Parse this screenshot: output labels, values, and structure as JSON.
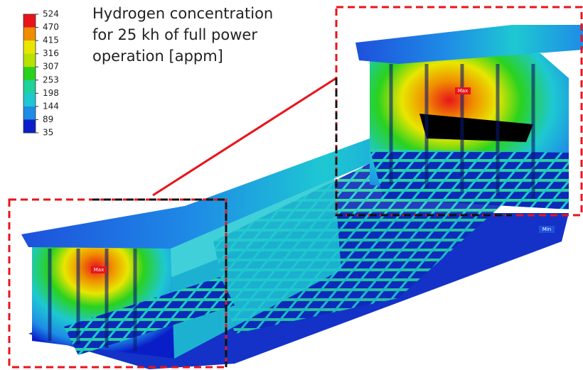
{
  "title_lines": [
    "Hydrogen concentration",
    "for 25 kh of full power",
    "operation [appm]"
  ],
  "legend": {
    "levels": [
      524,
      470,
      415,
      316,
      307,
      253,
      198,
      144,
      89,
      35
    ],
    "colors": [
      "#e8141c",
      "#f08c00",
      "#e8e600",
      "#b8e000",
      "#2ad21e",
      "#1ed29a",
      "#1ec8d2",
      "#1e8ce6",
      "#0a1ec8"
    ]
  },
  "markers": [
    "Max",
    "Max",
    "Min"
  ]
}
